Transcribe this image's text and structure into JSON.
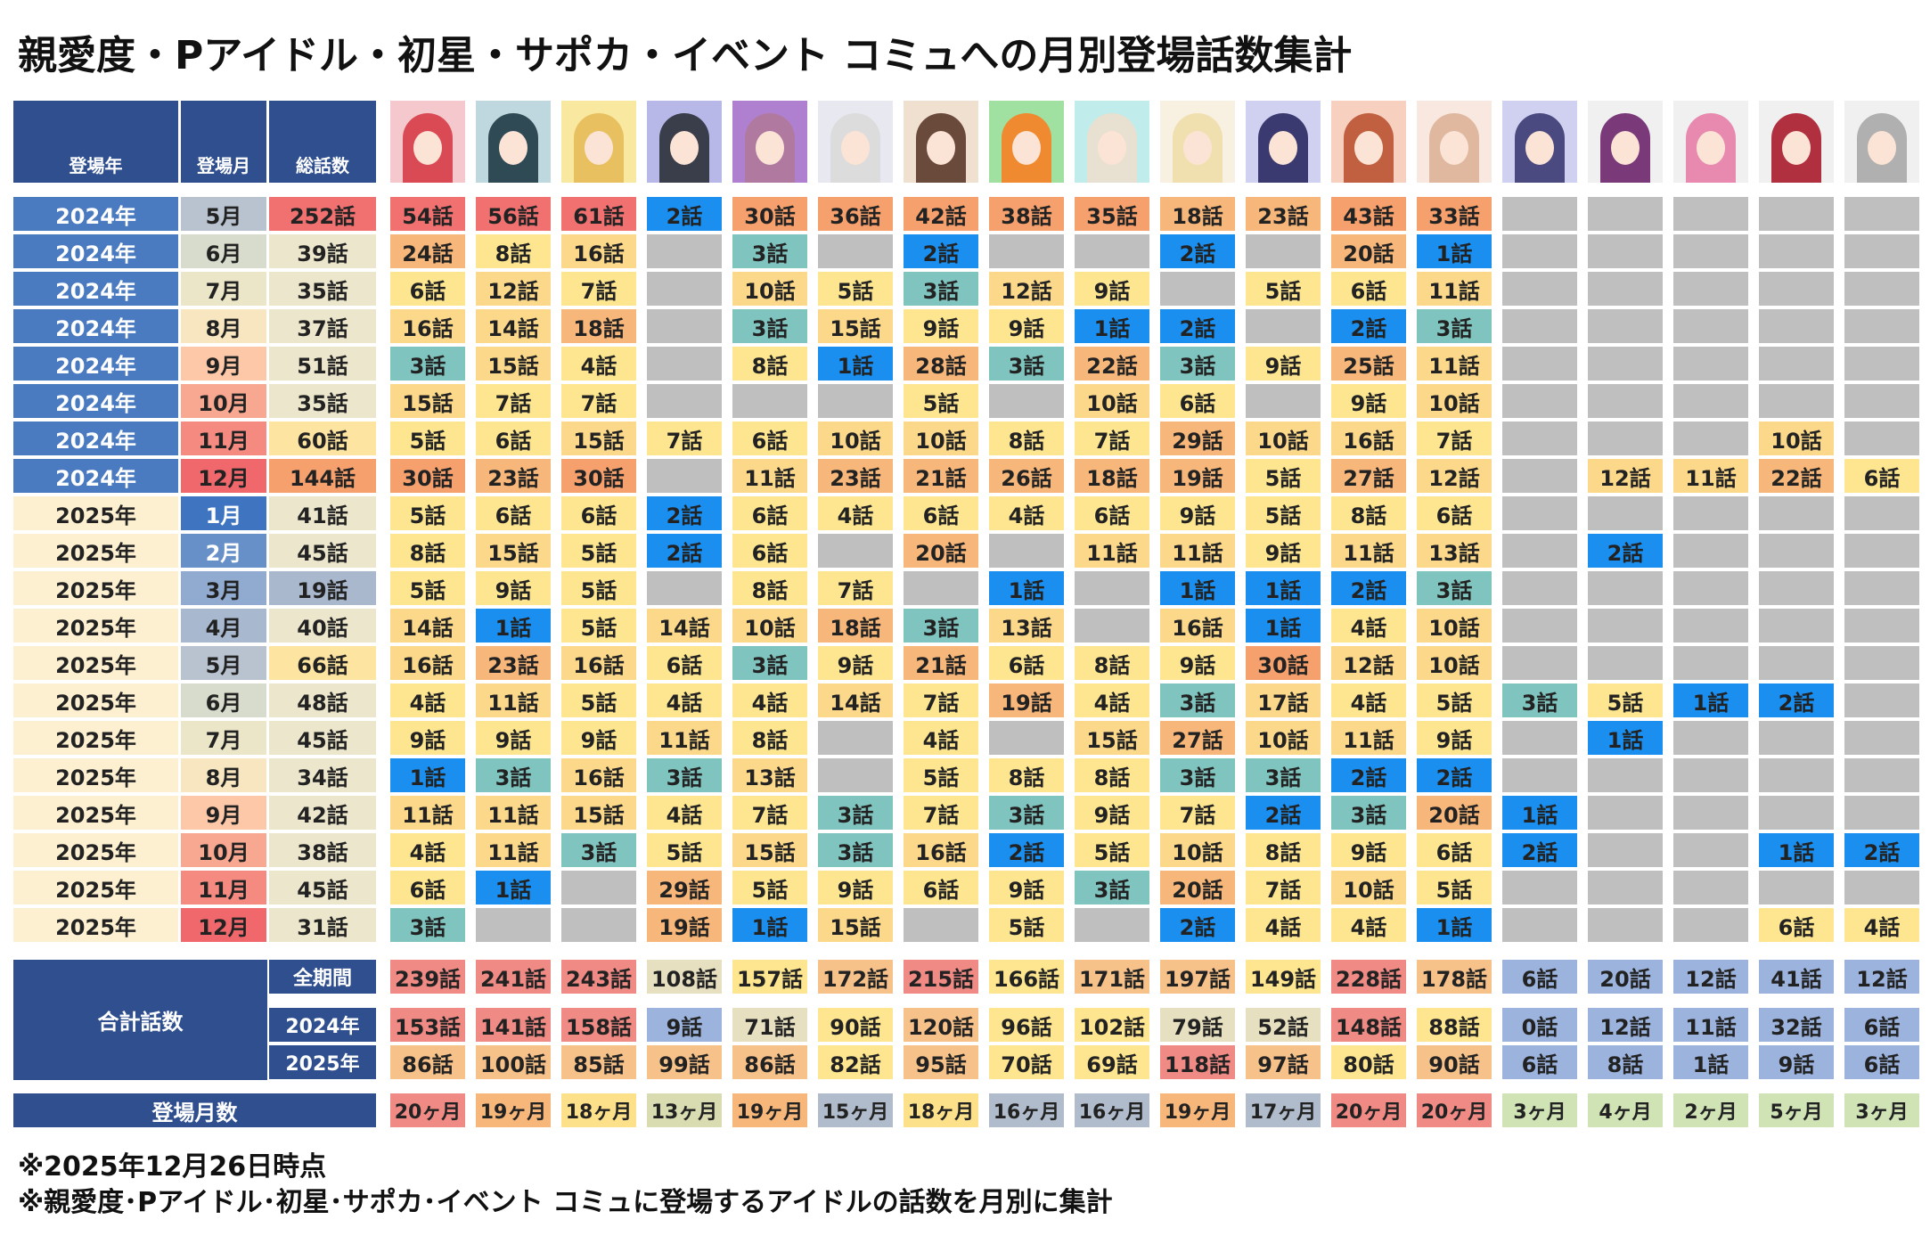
{
  "title": "親愛度・Pアイドル・初星・サポカ・イベント コミュへの月別登場話数集計",
  "headers": [
    "登場年",
    "登場月",
    "総話数"
  ],
  "rows": [
    {
      "year": "2024年",
      "month": "5月",
      "total": "252話",
      "cells": [
        "54話",
        "56話",
        "61話",
        "2話",
        "30話",
        "36話",
        "42話",
        "38話",
        "35話",
        "18話",
        "23話",
        "43話",
        "33話",
        null,
        null,
        null,
        null,
        null
      ]
    },
    {
      "year": "2024年",
      "month": "6月",
      "total": "39話",
      "cells": [
        "24話",
        "8話",
        "16話",
        null,
        "3話",
        null,
        "2話",
        null,
        null,
        "2話",
        null,
        "20話",
        "1話",
        null,
        null,
        null,
        null,
        null
      ]
    },
    {
      "year": "2024年",
      "month": "7月",
      "total": "35話",
      "cells": [
        "6話",
        "12話",
        "7話",
        null,
        "10話",
        "5話",
        "3話",
        "12話",
        "9話",
        null,
        "5話",
        "6話",
        "11話",
        null,
        null,
        null,
        null,
        null
      ]
    },
    {
      "year": "2024年",
      "month": "8月",
      "total": "37話",
      "cells": [
        "16話",
        "14話",
        "18話",
        null,
        "3話",
        "15話",
        "9話",
        "9話",
        "1話",
        "2話",
        null,
        "2話",
        "3話",
        null,
        null,
        null,
        null,
        null
      ]
    },
    {
      "year": "2024年",
      "month": "9月",
      "total": "51話",
      "cells": [
        "3話",
        "15話",
        "4話",
        null,
        "8話",
        "1話",
        "28話",
        "3話",
        "22話",
        "3話",
        "9話",
        "25話",
        "11話",
        null,
        null,
        null,
        null,
        null
      ]
    },
    {
      "year": "2024年",
      "month": "10月",
      "total": "35話",
      "cells": [
        "15話",
        "7話",
        "7話",
        null,
        null,
        null,
        "5話",
        null,
        "10話",
        "6話",
        null,
        "9話",
        "10話",
        null,
        null,
        null,
        null,
        null
      ]
    },
    {
      "year": "2024年",
      "month": "11月",
      "total": "60話",
      "cells": [
        "5話",
        "6話",
        "15話",
        "7話",
        "6話",
        "10話",
        "10話",
        "8話",
        "7話",
        "29話",
        "10話",
        "16話",
        "7話",
        null,
        null,
        null,
        "10話",
        null
      ]
    },
    {
      "year": "2024年",
      "month": "12月",
      "total": "144話",
      "cells": [
        "30話",
        "23話",
        "30話",
        null,
        "11話",
        "23話",
        "21話",
        "26話",
        "18話",
        "19話",
        "5話",
        "27話",
        "12話",
        null,
        "12話",
        "11話",
        "22話",
        "6話"
      ]
    },
    {
      "year": "2025年",
      "month": "1月",
      "total": "41話",
      "cells": [
        "5話",
        "6話",
        "6話",
        "2話",
        "6話",
        "4話",
        "6話",
        "4話",
        "6話",
        "9話",
        "5話",
        "8話",
        "6話",
        null,
        null,
        null,
        null,
        null
      ]
    },
    {
      "year": "2025年",
      "month": "2月",
      "total": "45話",
      "cells": [
        "8話",
        "15話",
        "5話",
        "2話",
        "6話",
        null,
        "20話",
        null,
        "11話",
        "11話",
        "9話",
        "11話",
        "13話",
        null,
        "2話",
        null,
        null,
        null
      ]
    },
    {
      "year": "2025年",
      "month": "3月",
      "total": "19話",
      "cells": [
        "5話",
        "9話",
        "5話",
        null,
        "8話",
        "7話",
        null,
        "1話",
        null,
        "1話",
        "1話",
        "2話",
        "3話",
        null,
        null,
        null,
        null,
        null
      ]
    },
    {
      "year": "2025年",
      "month": "4月",
      "total": "40話",
      "cells": [
        "14話",
        "1話",
        "5話",
        "14話",
        "10話",
        "18話",
        "3話",
        "13話",
        null,
        "16話",
        "1話",
        "4話",
        "10話",
        null,
        null,
        null,
        null,
        null
      ]
    },
    {
      "year": "2025年",
      "month": "5月",
      "total": "66話",
      "cells": [
        "16話",
        "23話",
        "16話",
        "6話",
        "3話",
        "9話",
        "21話",
        "6話",
        "8話",
        "9話",
        "30話",
        "12話",
        "10話",
        null,
        null,
        null,
        null,
        null
      ]
    },
    {
      "year": "2025年",
      "month": "6月",
      "total": "48話",
      "cells": [
        "4話",
        "11話",
        "5話",
        "4話",
        "4話",
        "14話",
        "7話",
        "19話",
        "4話",
        "3話",
        "17話",
        "4話",
        "5話",
        "3話",
        "5話",
        "1話",
        "2話",
        null
      ]
    },
    {
      "year": "2025年",
      "month": "7月",
      "total": "45話",
      "cells": [
        "9話",
        "9話",
        "9話",
        "11話",
        "8話",
        null,
        "4話",
        null,
        "15話",
        "27話",
        "10話",
        "11話",
        "9話",
        null,
        "1話",
        null,
        null,
        null
      ]
    },
    {
      "year": "2025年",
      "month": "8月",
      "total": "34話",
      "cells": [
        "1話",
        "3話",
        "16話",
        "3話",
        "13話",
        null,
        "5話",
        "8話",
        "8話",
        "3話",
        "3話",
        "2話",
        "2話",
        null,
        null,
        null,
        null,
        null
      ]
    },
    {
      "year": "2025年",
      "month": "9月",
      "total": "42話",
      "cells": [
        "11話",
        "11話",
        "15話",
        "4話",
        "7話",
        "3話",
        "7話",
        "3話",
        "9話",
        "7話",
        "2話",
        "3話",
        "20話",
        "1話",
        null,
        null,
        null,
        null
      ]
    },
    {
      "year": "2025年",
      "month": "10月",
      "total": "38話",
      "cells": [
        "4話",
        "11話",
        "3話",
        "5話",
        "15話",
        "3話",
        "16話",
        "2話",
        "5話",
        "10話",
        "8話",
        "9話",
        "6話",
        "2話",
        null,
        null,
        "1話",
        "2話"
      ]
    },
    {
      "year": "2025年",
      "month": "11月",
      "total": "45話",
      "cells": [
        "6話",
        "1話",
        null,
        "29話",
        "5話",
        "9話",
        "6話",
        "9話",
        "3話",
        "20話",
        "7話",
        "10話",
        "5話",
        null,
        null,
        null,
        null,
        null
      ]
    },
    {
      "year": "2025年",
      "month": "12月",
      "total": "31話",
      "cells": [
        "3話",
        null,
        null,
        "19話",
        "1話",
        "15話",
        null,
        "5話",
        null,
        "2話",
        "4話",
        "4話",
        "1話",
        null,
        null,
        null,
        "6話",
        "4話"
      ]
    }
  ],
  "summary": {
    "label": "合計話数",
    "rows": [
      {
        "label": "全期間",
        "cells": [
          "239話",
          "241話",
          "243話",
          "108話",
          "157話",
          "172話",
          "215話",
          "166話",
          "171話",
          "197話",
          "149話",
          "228話",
          "178話",
          "6話",
          "20話",
          "12話",
          "41話",
          "12話"
        ]
      },
      {
        "label": "2024年",
        "cells": [
          "153話",
          "141話",
          "158話",
          "9話",
          "71話",
          "90話",
          "120話",
          "96話",
          "102話",
          "79話",
          "52話",
          "148話",
          "88話",
          "0話",
          "12話",
          "11話",
          "32話",
          "6話"
        ]
      },
      {
        "label": "2025年",
        "cells": [
          "86話",
          "100話",
          "85話",
          "99話",
          "86話",
          "82話",
          "95話",
          "70話",
          "69話",
          "118話",
          "97話",
          "80話",
          "90話",
          "6話",
          "8話",
          "1話",
          "9話",
          "6話"
        ]
      }
    ]
  },
  "months_row": {
    "label": "登場月数",
    "cells": [
      "20ヶ月",
      "19ヶ月",
      "18ヶ月",
      "13ヶ月",
      "19ヶ月",
      "15ヶ月",
      "18ヶ月",
      "16ヶ月",
      "16ヶ月",
      "19ヶ月",
      "17ヶ月",
      "20ヶ月",
      "20ヶ月",
      "3ヶ月",
      "4ヶ月",
      "2ヶ月",
      "5ヶ月",
      "3ヶ月"
    ]
  },
  "notes": [
    "※2025年12月26日時点",
    "※親愛度･Pアイドル･初星･サポカ･イベント コミュに登場するアイドルの話数を月別に集計"
  ]
}
